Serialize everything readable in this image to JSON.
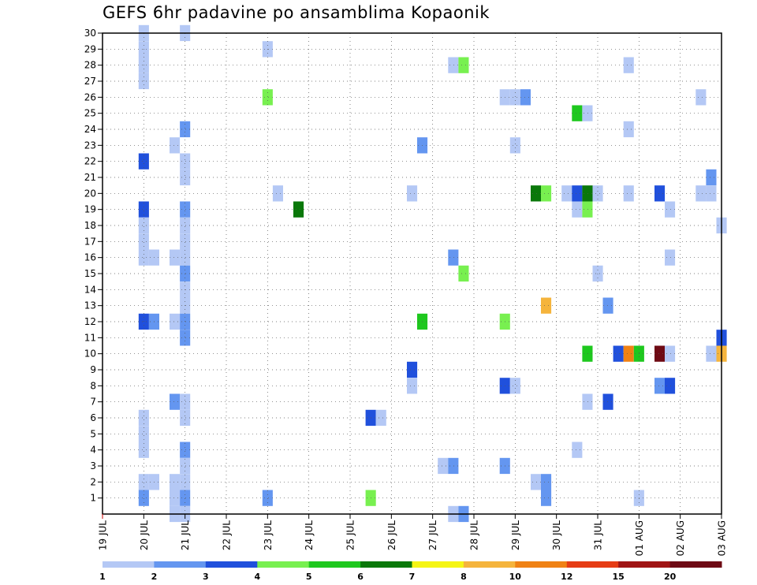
{
  "chart_data": {
    "type": "heatmap",
    "title": "GEFS 6hr padavine po ansamblima Kopaonik",
    "xlabel": "",
    "ylabel": "",
    "x_ticks": [
      "19 JUL",
      "20 JUL",
      "21 JUL",
      "22 JUL",
      "23 JUL",
      "24 JUL",
      "25 JUL",
      "26 JUL",
      "27 JUL",
      "28 JUL",
      "29 JUL",
      "30 JUL",
      "31 JUL",
      "01 AUG",
      "02 AUG",
      "03 AUG"
    ],
    "y_ticks": [
      "1",
      "2",
      "3",
      "4",
      "5",
      "6",
      "7",
      "8",
      "9",
      "10",
      "11",
      "12",
      "13",
      "14",
      "15",
      "16",
      "17",
      "18",
      "19",
      "20",
      "21",
      "22",
      "23",
      "24",
      "25",
      "26",
      "27",
      "28",
      "29",
      "30"
    ],
    "xlim_days": [
      0,
      15
    ],
    "ylim": [
      0,
      30
    ],
    "grid": true,
    "colorbar": {
      "levels": [
        "1",
        "2",
        "3",
        "4",
        "5",
        "6",
        "7",
        "8",
        "10",
        "12",
        "15",
        "20"
      ],
      "colors": [
        "#b4c8f5",
        "#6496f0",
        "#2050dc",
        "#78f050",
        "#1ec81e",
        "#0a780a",
        "#f5f514",
        "#f5b43c",
        "#f08214",
        "#e63c14",
        "#a01414",
        "#6e0a14"
      ]
    },
    "cells": [
      {
        "t": 1.0,
        "m": 30,
        "c": 1
      },
      {
        "t": 1.0,
        "m": 29,
        "c": 1
      },
      {
        "t": 1.0,
        "m": 28,
        "c": 1
      },
      {
        "t": 1.0,
        "m": 27,
        "c": 1
      },
      {
        "t": 1.0,
        "m": 22,
        "c": 3
      },
      {
        "t": 1.0,
        "m": 19,
        "c": 3
      },
      {
        "t": 1.0,
        "m": 18,
        "c": 1
      },
      {
        "t": 1.0,
        "m": 17,
        "c": 1
      },
      {
        "t": 1.0,
        "m": 16,
        "c": 1
      },
      {
        "t": 1.25,
        "m": 16,
        "c": 1
      },
      {
        "t": 1.0,
        "m": 12,
        "c": 3
      },
      {
        "t": 1.25,
        "m": 12,
        "c": 2
      },
      {
        "t": 1.0,
        "m": 6,
        "c": 1
      },
      {
        "t": 1.0,
        "m": 5,
        "c": 1
      },
      {
        "t": 1.0,
        "m": 4,
        "c": 1
      },
      {
        "t": 1.0,
        "m": 2,
        "c": 1
      },
      {
        "t": 1.25,
        "m": 2,
        "c": 1
      },
      {
        "t": 1.0,
        "m": 1,
        "c": 2
      },
      {
        "t": 2.0,
        "m": 30,
        "c": 1
      },
      {
        "t": 2.0,
        "m": 24,
        "c": 2
      },
      {
        "t": 1.75,
        "m": 23,
        "c": 1
      },
      {
        "t": 2.0,
        "m": 22,
        "c": 1
      },
      {
        "t": 2.0,
        "m": 21,
        "c": 1
      },
      {
        "t": 2.0,
        "m": 19,
        "c": 2
      },
      {
        "t": 2.0,
        "m": 18,
        "c": 1
      },
      {
        "t": 2.0,
        "m": 17,
        "c": 1
      },
      {
        "t": 1.75,
        "m": 16,
        "c": 1
      },
      {
        "t": 2.0,
        "m": 16,
        "c": 1
      },
      {
        "t": 2.0,
        "m": 15,
        "c": 2
      },
      {
        "t": 2.0,
        "m": 14,
        "c": 1
      },
      {
        "t": 2.0,
        "m": 13,
        "c": 1
      },
      {
        "t": 1.75,
        "m": 12,
        "c": 1
      },
      {
        "t": 2.0,
        "m": 12,
        "c": 2
      },
      {
        "t": 2.0,
        "m": 11,
        "c": 2
      },
      {
        "t": 1.75,
        "m": 7,
        "c": 2
      },
      {
        "t": 2.0,
        "m": 7,
        "c": 1
      },
      {
        "t": 2.0,
        "m": 6,
        "c": 1
      },
      {
        "t": 2.0,
        "m": 4,
        "c": 2
      },
      {
        "t": 2.0,
        "m": 3,
        "c": 1
      },
      {
        "t": 1.75,
        "m": 2,
        "c": 1
      },
      {
        "t": 2.0,
        "m": 2,
        "c": 1
      },
      {
        "t": 1.75,
        "m": 1,
        "c": 1
      },
      {
        "t": 2.0,
        "m": 1,
        "c": 2
      },
      {
        "t": 1.75,
        "m": 0,
        "c": 1
      },
      {
        "t": 2.0,
        "m": 0,
        "c": 1
      },
      {
        "t": 4.0,
        "m": 29,
        "c": 1
      },
      {
        "t": 4.0,
        "m": 26,
        "c": 4
      },
      {
        "t": 4.25,
        "m": 20,
        "c": 1
      },
      {
        "t": 4.75,
        "m": 19,
        "c": 6
      },
      {
        "t": 4.0,
        "m": 1,
        "c": 2
      },
      {
        "t": 6.5,
        "m": 6,
        "c": 3
      },
      {
        "t": 6.75,
        "m": 6,
        "c": 1
      },
      {
        "t": 6.5,
        "m": 1,
        "c": 4
      },
      {
        "t": 7.75,
        "m": 23,
        "c": 2
      },
      {
        "t": 7.5,
        "m": 20,
        "c": 1
      },
      {
        "t": 7.75,
        "m": 12,
        "c": 5
      },
      {
        "t": 7.5,
        "m": 9,
        "c": 3
      },
      {
        "t": 7.5,
        "m": 8,
        "c": 1
      },
      {
        "t": 8.5,
        "m": 28,
        "c": 1
      },
      {
        "t": 8.75,
        "m": 28,
        "c": 4
      },
      {
        "t": 8.5,
        "m": 16,
        "c": 2
      },
      {
        "t": 8.75,
        "m": 15,
        "c": 4
      },
      {
        "t": 8.25,
        "m": 3,
        "c": 1
      },
      {
        "t": 8.5,
        "m": 3,
        "c": 2
      },
      {
        "t": 8.5,
        "m": 0,
        "c": 1
      },
      {
        "t": 8.75,
        "m": 0,
        "c": 2
      },
      {
        "t": 9.75,
        "m": 26,
        "c": 1
      },
      {
        "t": 10.0,
        "m": 26,
        "c": 1
      },
      {
        "t": 10.25,
        "m": 26,
        "c": 2
      },
      {
        "t": 10.0,
        "m": 23,
        "c": 1
      },
      {
        "t": 9.75,
        "m": 12,
        "c": 4
      },
      {
        "t": 9.75,
        "m": 8,
        "c": 3
      },
      {
        "t": 10.0,
        "m": 8,
        "c": 1
      },
      {
        "t": 9.75,
        "m": 3,
        "c": 2
      },
      {
        "t": 10.5,
        "m": 20,
        "c": 6
      },
      {
        "t": 10.75,
        "m": 20,
        "c": 4
      },
      {
        "t": 10.75,
        "m": 13,
        "c": 8
      },
      {
        "t": 10.5,
        "m": 2,
        "c": 1
      },
      {
        "t": 10.75,
        "m": 2,
        "c": 2
      },
      {
        "t": 10.75,
        "m": 1,
        "c": 2
      },
      {
        "t": 11.5,
        "m": 25,
        "c": 5
      },
      {
        "t": 11.75,
        "m": 25,
        "c": 1
      },
      {
        "t": 11.25,
        "m": 20,
        "c": 1
      },
      {
        "t": 11.5,
        "m": 20,
        "c": 3
      },
      {
        "t": 11.75,
        "m": 20,
        "c": 6
      },
      {
        "t": 12.0,
        "m": 20,
        "c": 1
      },
      {
        "t": 11.5,
        "m": 19,
        "c": 1
      },
      {
        "t": 11.75,
        "m": 19,
        "c": 4
      },
      {
        "t": 12.0,
        "m": 15,
        "c": 1
      },
      {
        "t": 11.75,
        "m": 10,
        "c": 5
      },
      {
        "t": 11.75,
        "m": 7,
        "c": 1
      },
      {
        "t": 11.5,
        "m": 4,
        "c": 1
      },
      {
        "t": 12.25,
        "m": 13,
        "c": 2
      },
      {
        "t": 12.25,
        "m": 7,
        "c": 3
      },
      {
        "t": 12.75,
        "m": 28,
        "c": 1
      },
      {
        "t": 12.75,
        "m": 24,
        "c": 1
      },
      {
        "t": 12.75,
        "m": 20,
        "c": 1
      },
      {
        "t": 12.5,
        "m": 10,
        "c": 3
      },
      {
        "t": 12.75,
        "m": 10,
        "c": 9
      },
      {
        "t": 13.0,
        "m": 10,
        "c": 5
      },
      {
        "t": 13.0,
        "m": 1,
        "c": 1
      },
      {
        "t": 13.5,
        "m": 20,
        "c": 3
      },
      {
        "t": 13.75,
        "m": 19,
        "c": 1
      },
      {
        "t": 13.75,
        "m": 16,
        "c": 1
      },
      {
        "t": 13.5,
        "m": 10,
        "c": 12
      },
      {
        "t": 13.75,
        "m": 10,
        "c": 1
      },
      {
        "t": 13.5,
        "m": 8,
        "c": 2
      },
      {
        "t": 13.75,
        "m": 8,
        "c": 3
      },
      {
        "t": 14.5,
        "m": 26,
        "c": 1
      },
      {
        "t": 14.75,
        "m": 21,
        "c": 2
      },
      {
        "t": 14.5,
        "m": 20,
        "c": 1
      },
      {
        "t": 14.75,
        "m": 20,
        "c": 1
      },
      {
        "t": 15.0,
        "m": 18,
        "c": 1
      },
      {
        "t": 15.0,
        "m": 11,
        "c": 3
      },
      {
        "t": 14.75,
        "m": 10,
        "c": 1
      },
      {
        "t": 15.0,
        "m": 10,
        "c": 8
      }
    ]
  }
}
